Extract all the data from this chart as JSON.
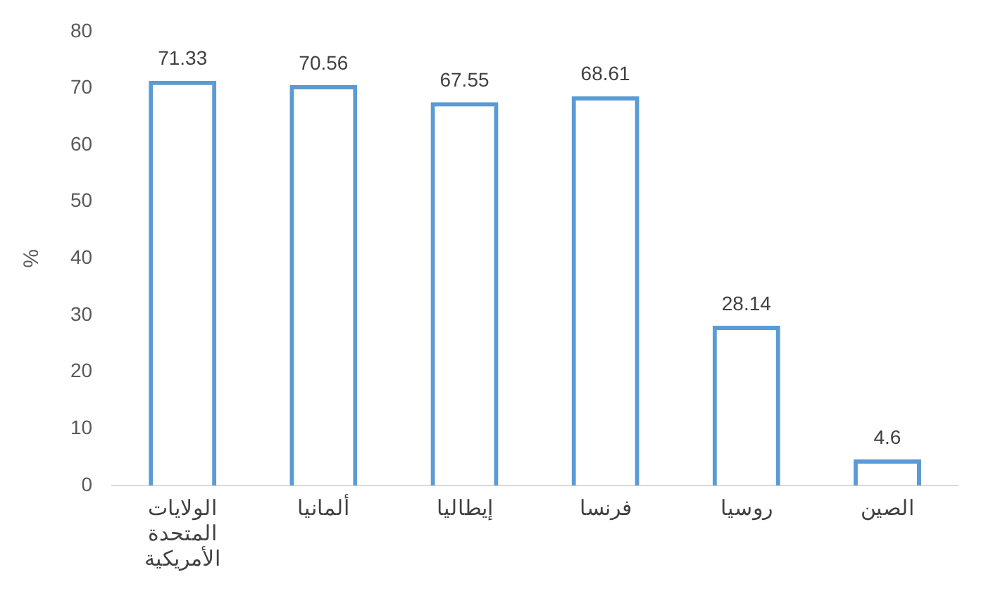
{
  "chart_data": {
    "type": "bar",
    "ylabel": "%",
    "categories": [
      "الولايات المتحدة الأمريكية",
      "ألمانيا",
      "إيطاليا",
      "فرنسا",
      "روسيا",
      "الصين"
    ],
    "values": [
      71.33,
      70.56,
      67.55,
      68.61,
      28.14,
      4.6
    ],
    "color": "#5b9bd5",
    "ylim": [
      0,
      80
    ],
    "yticks": [
      0,
      10,
      20,
      30,
      40,
      50,
      60,
      70,
      80
    ],
    "grid": false,
    "data_labels": true
  }
}
